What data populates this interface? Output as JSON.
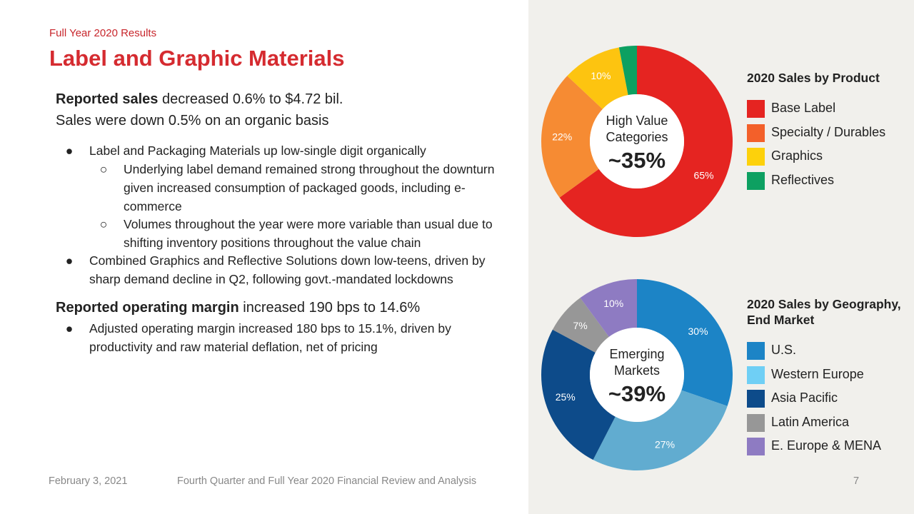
{
  "header": {
    "subtitle": "Full Year 2020 Results",
    "title": "Label and Graphic Materials"
  },
  "body": {
    "sales_bold": "Reported sales",
    "sales_rest": " decreased 0.6% to $4.72 bil.",
    "organic": "Sales were down 0.5% on an organic basis",
    "bullet1": "Label and Packaging Materials up low-single digit organically",
    "bullet1a": "Underlying label demand remained strong throughout the downturn given increased consumption of packaged goods, including e-commerce",
    "bullet1b": "Volumes throughout the year were more variable than usual due to shifting inventory positions throughout the value chain",
    "bullet2": "Combined Graphics and Reflective Solutions down low-teens, driven by sharp demand decline in Q2, following govt.-mandated lockdowns",
    "margin_bold": "Reported operating margin",
    "margin_rest": " increased 190 bps to 14.6%",
    "bullet3": "Adjusted operating margin increased 180 bps to 15.1%, driven by productivity and raw material deflation, net of pricing",
    "bullet_dot": "●",
    "sub_bullet": "○"
  },
  "footer": {
    "date": "February 3, 2021",
    "report": "Fourth Quarter and Full Year 2020 Financial Review and Analysis",
    "page": "7"
  },
  "chart_data": [
    {
      "type": "pie",
      "title": "2020 Sales by Product",
      "center_label": "High Value Categories",
      "center_label_lines": [
        "High Value",
        "Categories"
      ],
      "center_value": "~35%",
      "categories": [
        "Base Label",
        "Specialty / Durables",
        "Graphics",
        "Reflectives"
      ],
      "values": [
        65,
        22,
        10,
        3
      ],
      "data_labels": [
        "65%",
        "22%",
        "10%",
        ""
      ],
      "colors": [
        "#e52421",
        "#f68b33",
        "#fdc410",
        "#0da061"
      ],
      "legend_colors": [
        "#e52421",
        "#f3602a",
        "#fdd10b",
        "#0da061"
      ],
      "legend": "right"
    },
    {
      "type": "pie",
      "title": "2020 Sales by Geography, End Market",
      "title_lines": [
        "2020 Sales by Geography,",
        "End Market"
      ],
      "center_label": "Emerging Markets",
      "center_label_lines": [
        "Emerging",
        "Markets"
      ],
      "center_value": "~39%",
      "categories": [
        "U.S.",
        "Western Europe",
        "Asia Pacific",
        "Latin America",
        "E. Europe & MENA"
      ],
      "values": [
        30,
        27,
        25,
        7,
        10
      ],
      "data_labels": [
        "30%",
        "27%",
        "25%",
        "7%",
        "10%"
      ],
      "colors": [
        "#1c84c6",
        "#61acd0",
        "#0d4b8a",
        "#979797",
        "#8e7bc2"
      ],
      "legend_colors": [
        "#1c84c6",
        "#6fcff5",
        "#0d4b8a",
        "#979797",
        "#8e7bc2"
      ],
      "legend": "right"
    }
  ]
}
